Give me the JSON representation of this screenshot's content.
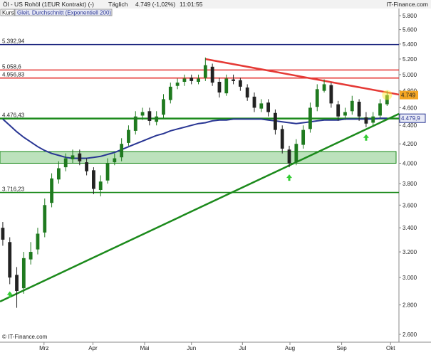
{
  "chart_data": {
    "type": "candlestick",
    "title": "Öl - US Rohöl (1EUR Kontrakt) (-)",
    "interval": "Täglich",
    "quote": "4.749 (-1,02%)",
    "time": "11:01:55",
    "brand": "IT-Finance.com",
    "copyright": "© IT-Finance.com",
    "legend": [
      "Kurs",
      "Gleit. Durchschnitt (Exponentiell 200)"
    ],
    "log_scale": true,
    "ylim": [
      2.6,
      5.8
    ],
    "yticks": [
      {
        "value": 2.6,
        "label": "2.600"
      },
      {
        "value": 2.8,
        "label": "2.800"
      },
      {
        "value": 3.0,
        "label": "3.000"
      },
      {
        "value": 3.2,
        "label": "3.200"
      },
      {
        "value": 3.4,
        "label": "3.400"
      },
      {
        "value": 3.6,
        "label": "3.600"
      },
      {
        "value": 3.8,
        "label": "3.800"
      },
      {
        "value": 4.0,
        "label": "4.000"
      },
      {
        "value": 4.2,
        "label": "4.200"
      },
      {
        "value": 4.4,
        "label": "4.400"
      },
      {
        "value": 4.6,
        "label": "4.600"
      },
      {
        "value": 4.8,
        "label": "4.800"
      },
      {
        "value": 5.0,
        "label": "5.000"
      },
      {
        "value": 5.2,
        "label": "5.200"
      },
      {
        "value": 5.4,
        "label": "5.400"
      },
      {
        "value": 5.6,
        "label": "5.600"
      },
      {
        "value": 5.8,
        "label": "5.800"
      }
    ],
    "xlim": [
      -0.4,
      56.7
    ],
    "xticks": [
      {
        "value": 5.9,
        "label": "Mrz"
      },
      {
        "value": 12.9,
        "label": "Apr"
      },
      {
        "value": 20.3,
        "label": "Mai"
      },
      {
        "value": 27,
        "label": "Jun"
      },
      {
        "value": 34.3,
        "label": "Jul"
      },
      {
        "value": 41.1,
        "label": "Aug"
      },
      {
        "value": 48.5,
        "label": "Sep"
      },
      {
        "value": 55.5,
        "label": "Okt"
      }
    ],
    "up_color": "#1f7a1f",
    "down_color": "#222222",
    "open": [
      3.4,
      3.28,
      3.02,
      2.92,
      3.14,
      3.22,
      3.36,
      3.62,
      3.84,
      3.96,
      4.04,
      4.1,
      4.01,
      3.93,
      3.74,
      3.83,
      4.01,
      4.06,
      4.21,
      4.34,
      4.51,
      4.56,
      4.44,
      4.52,
      4.69,
      4.86,
      4.91,
      4.96,
      4.91,
      4.96,
      5.1,
      4.91,
      4.77,
      4.94,
      4.93,
      4.84,
      4.73,
      4.59,
      4.66,
      4.54,
      4.36,
      4.14,
      4.01,
      4.19,
      4.36,
      4.61,
      4.8,
      4.87,
      4.64,
      4.51,
      4.56,
      4.67,
      4.49,
      4.43,
      4.51,
      4.64
    ],
    "high": [
      3.45,
      3.32,
      3.08,
      3.2,
      3.28,
      3.4,
      3.66,
      3.9,
      4.02,
      4.1,
      4.14,
      4.14,
      4.05,
      3.96,
      3.88,
      4.05,
      4.1,
      4.26,
      4.4,
      4.56,
      4.6,
      4.6,
      4.56,
      4.76,
      4.9,
      4.95,
      5.0,
      5.0,
      5.0,
      5.22,
      5.14,
      4.96,
      5.0,
      5.0,
      4.96,
      4.88,
      4.78,
      4.7,
      4.7,
      4.58,
      4.4,
      4.18,
      4.25,
      4.4,
      4.66,
      4.88,
      4.94,
      4.9,
      4.68,
      4.6,
      4.74,
      4.7,
      4.55,
      4.55,
      4.7,
      4.8
    ],
    "low": [
      3.25,
      2.95,
      2.78,
      2.88,
      3.1,
      3.18,
      3.32,
      3.58,
      3.8,
      3.92,
      4.0,
      3.98,
      3.88,
      3.7,
      3.68,
      3.8,
      3.98,
      4.02,
      4.18,
      4.3,
      4.46,
      4.4,
      4.4,
      4.48,
      4.65,
      4.82,
      4.86,
      4.88,
      4.88,
      4.92,
      4.86,
      4.72,
      4.74,
      4.88,
      4.8,
      4.68,
      4.55,
      4.55,
      4.5,
      4.3,
      4.1,
      3.96,
      3.98,
      4.15,
      4.32,
      4.56,
      4.78,
      4.6,
      4.45,
      4.46,
      4.52,
      4.45,
      4.38,
      4.4,
      4.48,
      4.62
    ],
    "close": [
      3.3,
      3.0,
      2.9,
      3.15,
      3.2,
      3.35,
      3.6,
      3.85,
      3.95,
      4.05,
      4.08,
      4.02,
      3.92,
      3.75,
      3.82,
      4.0,
      4.05,
      4.2,
      4.35,
      4.5,
      4.55,
      4.45,
      4.5,
      4.7,
      4.85,
      4.9,
      4.95,
      4.92,
      4.95,
      5.12,
      4.9,
      4.78,
      4.95,
      4.92,
      4.85,
      4.72,
      4.6,
      4.65,
      4.55,
      4.35,
      4.15,
      4.0,
      4.2,
      4.35,
      4.6,
      4.82,
      4.88,
      4.65,
      4.5,
      4.55,
      4.68,
      4.5,
      4.42,
      4.5,
      4.65,
      4.749
    ],
    "price_label": 4.749,
    "ema": {
      "color": "#283593",
      "values": [
        4.47,
        4.4,
        4.33,
        4.27,
        4.22,
        4.17,
        4.13,
        4.1,
        4.08,
        4.06,
        4.05,
        4.05,
        4.05,
        4.06,
        4.07,
        4.09,
        4.11,
        4.14,
        4.17,
        4.2,
        4.23,
        4.26,
        4.29,
        4.31,
        4.34,
        4.36,
        4.38,
        4.4,
        4.42,
        4.43,
        4.45,
        4.46,
        4.46,
        4.47,
        4.47,
        4.47,
        4.47,
        4.47,
        4.46,
        4.45,
        4.44,
        4.43,
        4.42,
        4.43,
        4.44,
        4.45,
        4.46,
        4.46,
        4.46,
        4.47,
        4.47,
        4.47,
        4.47,
        4.47,
        4.48,
        4.4799
      ],
      "last_label": {
        "value": 4.4799,
        "label": "4.479,9"
      }
    },
    "levels": [
      {
        "value": 5.39294,
        "label": "5.392,94",
        "color": "#1a237e"
      },
      {
        "value": 5.0586,
        "label": "5.058,6",
        "color": "#e53935"
      },
      {
        "value": 4.95683,
        "label": "4.956,83",
        "color": "#e53935"
      },
      {
        "value": 4.47643,
        "label": "4.476,43",
        "color": "#1b8a1b"
      },
      {
        "value": 3.71623,
        "label": "3.716,23",
        "color": "#1b8a1b"
      }
    ],
    "zone": {
      "from": 4.0,
      "to": 4.12,
      "color": "#8fcf8f"
    },
    "trendlines": [
      {
        "color": "#e53935",
        "from": [
          29.0,
          5.2
        ],
        "to": [
          56.7,
          4.755
        ]
      },
      {
        "color": "#1b8a1b",
        "from": [
          -0.4,
          2.824
        ],
        "to": [
          56.7,
          4.53
        ]
      }
    ],
    "signals": [
      1,
      41,
      52
    ]
  }
}
